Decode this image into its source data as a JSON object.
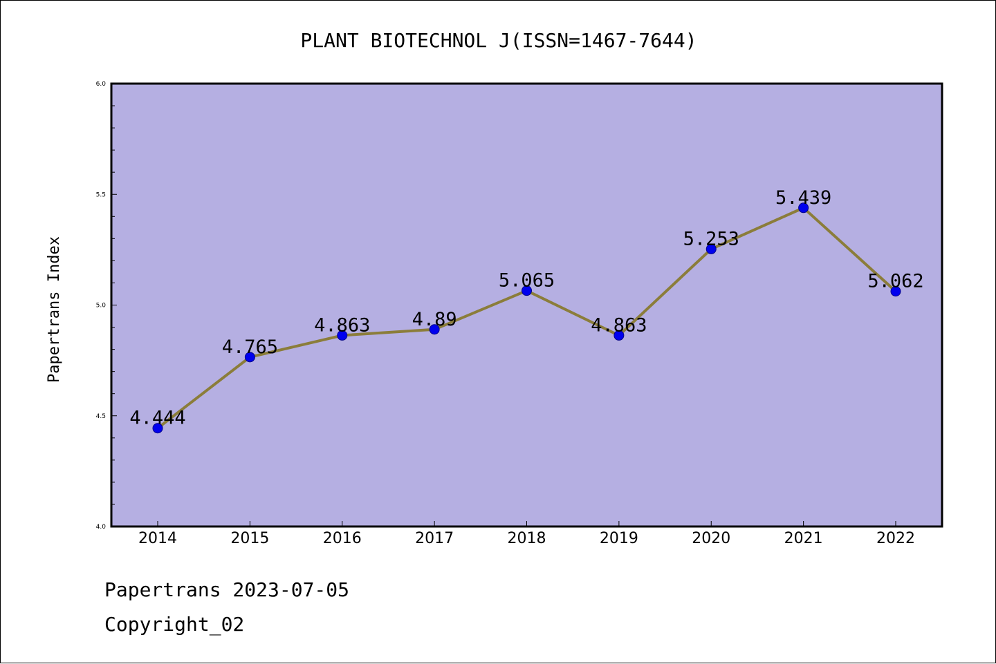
{
  "chart_data": {
    "type": "line",
    "title": "PLANT BIOTECHNOL J(ISSN=1467-7644)",
    "xlabel": "",
    "ylabel": "Papertrans Index",
    "categories": [
      "2014",
      "2015",
      "2016",
      "2017",
      "2018",
      "2019",
      "2020",
      "2021",
      "2022"
    ],
    "series": [
      {
        "values": [
          4.444,
          4.765,
          4.863,
          4.89,
          5.065,
          4.863,
          5.253,
          5.439,
          5.062
        ]
      }
    ],
    "data_labels": [
      "4.444",
      "4.765",
      "4.863",
      "4.89",
      "5.065",
      "4.863",
      "5.253",
      "5.439",
      "5.062"
    ],
    "ylim": [
      4.0,
      6.0
    ],
    "y_ticks": [
      "4.0",
      "4.5",
      "5.0",
      "5.5",
      "6.0"
    ],
    "grid": false,
    "colors": {
      "plot_background": "#b5afe2",
      "line": "#8b7d3a",
      "marker_fill": "#0000ee",
      "marker_edge": "#00008b"
    }
  },
  "footer": {
    "source": "Papertrans 2023-07-05",
    "copyright": "Copyright_02"
  }
}
